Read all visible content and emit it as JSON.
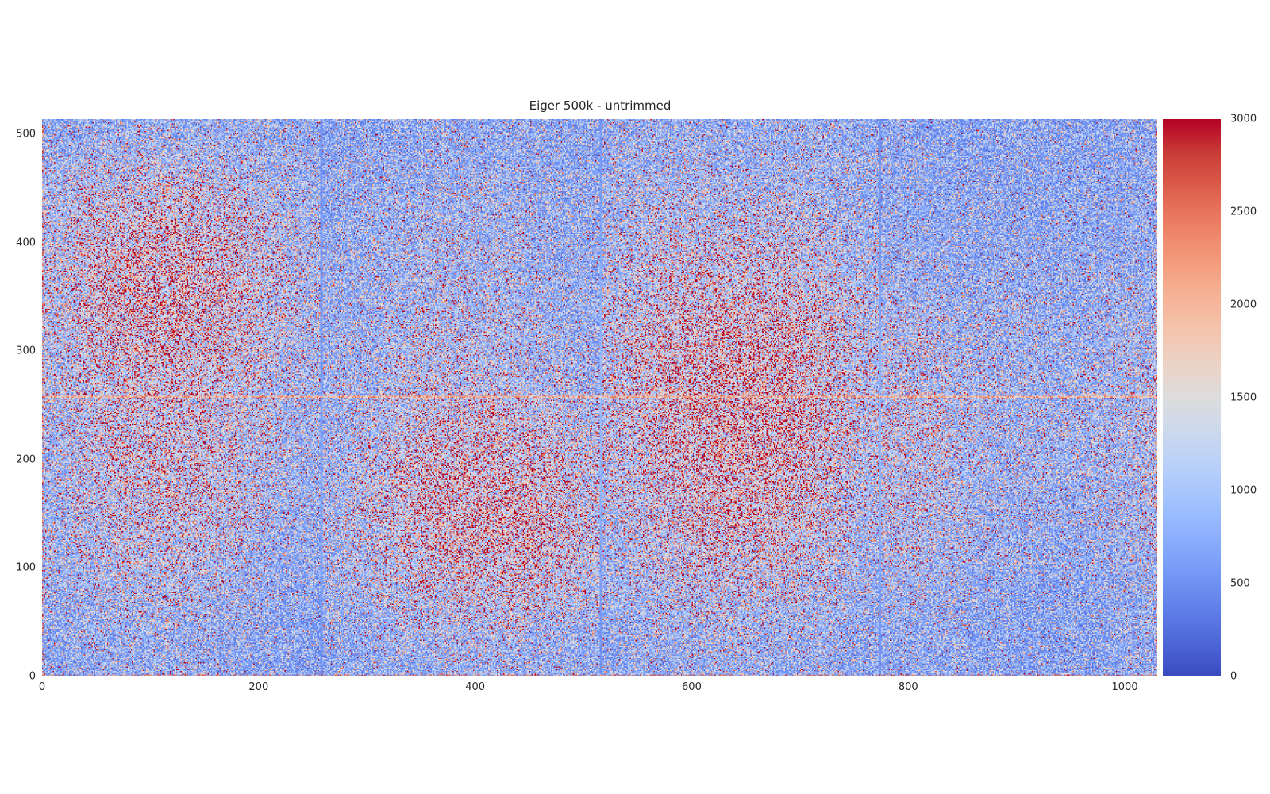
{
  "figure": {
    "background_color": "#ffffff",
    "text_color": "#262626"
  },
  "chart_data": {
    "type": "heatmap",
    "title": "Eiger 500k - untrimmed",
    "xlabel": "",
    "ylabel": "",
    "xlim": [
      0,
      1030
    ],
    "ylim": [
      0,
      514
    ],
    "x_ticks": [
      0,
      200,
      400,
      600,
      800,
      1000
    ],
    "y_ticks": [
      0,
      100,
      200,
      300,
      400,
      500
    ],
    "grid": "off",
    "colormap": "coolwarm",
    "clim": [
      0,
      3000
    ],
    "colorbar": {
      "position": "right",
      "ticks": [
        0,
        500,
        1000,
        1500,
        2000,
        2500,
        3000
      ],
      "color_low": "#3b4cc0",
      "color_mid": "#dddddd",
      "color_high": "#b40426"
    },
    "detector_modules": {
      "columns": 4,
      "rows": 2,
      "gap_x_positions": [
        257,
        515,
        773
      ],
      "gap_y_positions": [
        257
      ],
      "gap_x_style": "darker-blue-line",
      "gap_y_style": "light-warm-line",
      "edge_style": "hot-speckled-border (left, right, bottom edges)"
    },
    "noise": {
      "model": "exponential-speckle",
      "seed": 1337,
      "floor_factor": 0.33,
      "scale_factor": 0.68,
      "dropout_prob": 0.02
    },
    "intensity_grid": {
      "comment": "local mean counts; 16 rows (top=y=514 .. bottom=y=0) x 32 cols (x=0 .. 1030)",
      "rows": 16,
      "cols": 32,
      "values": [
        [
          950,
          1000,
          1050,
          1050,
          1050,
          1000,
          1000,
          950,
          900,
          900,
          900,
          950,
          950,
          950,
          900,
          900,
          1000,
          1000,
          1000,
          1000,
          1000,
          1000,
          1000,
          950,
          900,
          850,
          850,
          850,
          850,
          850,
          850,
          900
        ],
        [
          1100,
          1250,
          1350,
          1400,
          1350,
          1250,
          1150,
          1050,
          950,
          950,
          1000,
          1000,
          1000,
          1000,
          950,
          900,
          1050,
          1100,
          1100,
          1100,
          1100,
          1100,
          1050,
          1000,
          950,
          900,
          850,
          850,
          850,
          850,
          850,
          900
        ],
        [
          1250,
          1500,
          1650,
          1700,
          1650,
          1500,
          1350,
          1150,
          950,
          1000,
          1050,
          1100,
          1100,
          1050,
          1000,
          950,
          1100,
          1200,
          1250,
          1250,
          1250,
          1200,
          1150,
          1050,
          950,
          900,
          900,
          900,
          900,
          900,
          900,
          950
        ],
        [
          1350,
          1700,
          1900,
          1950,
          1900,
          1700,
          1450,
          1200,
          1000,
          1050,
          1100,
          1150,
          1150,
          1100,
          1050,
          950,
          1200,
          1350,
          1450,
          1450,
          1450,
          1400,
          1300,
          1150,
          1000,
          950,
          900,
          900,
          900,
          900,
          900,
          950
        ],
        [
          1400,
          1800,
          2000,
          2050,
          2000,
          1800,
          1500,
          1250,
          1000,
          1050,
          1150,
          1200,
          1200,
          1150,
          1050,
          1000,
          1300,
          1500,
          1650,
          1700,
          1700,
          1600,
          1450,
          1250,
          1050,
          1000,
          950,
          950,
          950,
          950,
          950,
          1000
        ],
        [
          1400,
          1800,
          2000,
          2050,
          1950,
          1750,
          1500,
          1250,
          1000,
          1100,
          1200,
          1250,
          1250,
          1200,
          1100,
          1000,
          1400,
          1650,
          1850,
          1900,
          1900,
          1800,
          1600,
          1350,
          1200,
          1150,
          1050,
          1000,
          1000,
          1000,
          1050,
          1100
        ],
        [
          1350,
          1700,
          1850,
          1900,
          1850,
          1650,
          1450,
          1200,
          1050,
          1150,
          1250,
          1300,
          1300,
          1250,
          1150,
          1050,
          1450,
          1750,
          1950,
          2050,
          2050,
          1950,
          1700,
          1400,
          1300,
          1250,
          1150,
          1050,
          1050,
          1050,
          1100,
          1150
        ],
        [
          1300,
          1550,
          1700,
          1750,
          1700,
          1550,
          1350,
          1150,
          1100,
          1200,
          1350,
          1400,
          1400,
          1350,
          1250,
          1100,
          1500,
          1800,
          2000,
          2100,
          2100,
          2000,
          1750,
          1450,
          1400,
          1350,
          1200,
          1100,
          1050,
          1100,
          1150,
          1200
        ],
        [
          1250,
          1500,
          1650,
          1700,
          1650,
          1500,
          1300,
          1100,
          1100,
          1250,
          1400,
          1550,
          1650,
          1600,
          1500,
          1300,
          1500,
          1800,
          2050,
          2150,
          2150,
          2050,
          1800,
          1450,
          1450,
          1400,
          1250,
          1150,
          1100,
          1100,
          1150,
          1250
        ],
        [
          1250,
          1500,
          1650,
          1700,
          1650,
          1500,
          1300,
          1100,
          1150,
          1350,
          1600,
          1800,
          1900,
          1850,
          1700,
          1450,
          1450,
          1750,
          2000,
          2100,
          2100,
          2000,
          1750,
          1400,
          1450,
          1400,
          1250,
          1150,
          1100,
          1100,
          1150,
          1250
        ],
        [
          1200,
          1450,
          1600,
          1650,
          1600,
          1450,
          1250,
          1050,
          1200,
          1400,
          1750,
          1950,
          2050,
          2000,
          1850,
          1550,
          1400,
          1650,
          1900,
          2000,
          2000,
          1900,
          1650,
          1350,
          1400,
          1350,
          1200,
          1100,
          1050,
          1050,
          1100,
          1200
        ],
        [
          1150,
          1400,
          1500,
          1550,
          1500,
          1400,
          1200,
          1000,
          1200,
          1400,
          1750,
          1950,
          2100,
          2050,
          1850,
          1550,
          1300,
          1550,
          1750,
          1850,
          1850,
          1750,
          1550,
          1250,
          1350,
          1300,
          1150,
          1050,
          1000,
          1000,
          1050,
          1150
        ],
        [
          1100,
          1300,
          1400,
          1400,
          1350,
          1250,
          1100,
          950,
          1150,
          1350,
          1650,
          1850,
          1950,
          1900,
          1750,
          1450,
          1200,
          1400,
          1550,
          1650,
          1650,
          1550,
          1400,
          1150,
          1250,
          1200,
          1100,
          1000,
          950,
          950,
          1000,
          1100
        ],
        [
          1000,
          1150,
          1250,
          1250,
          1200,
          1100,
          1000,
          900,
          1050,
          1200,
          1400,
          1550,
          1650,
          1600,
          1500,
          1300,
          1100,
          1250,
          1350,
          1400,
          1400,
          1350,
          1250,
          1050,
          1100,
          1050,
          950,
          900,
          850,
          850,
          900,
          1000
        ],
        [
          950,
          1050,
          1100,
          1100,
          1050,
          1000,
          950,
          850,
          1000,
          1100,
          1200,
          1300,
          1300,
          1300,
          1200,
          1100,
          1000,
          1100,
          1150,
          1200,
          1200,
          1150,
          1100,
          950,
          1000,
          950,
          900,
          850,
          850,
          850,
          900,
          950
        ],
        [
          900,
          950,
          1000,
          1000,
          950,
          900,
          850,
          800,
          900,
          950,
          1000,
          1050,
          1050,
          1050,
          1000,
          950,
          900,
          950,
          1000,
          1050,
          1050,
          1000,
          950,
          900,
          950,
          900,
          850,
          850,
          800,
          850,
          900,
          950
        ]
      ]
    }
  }
}
